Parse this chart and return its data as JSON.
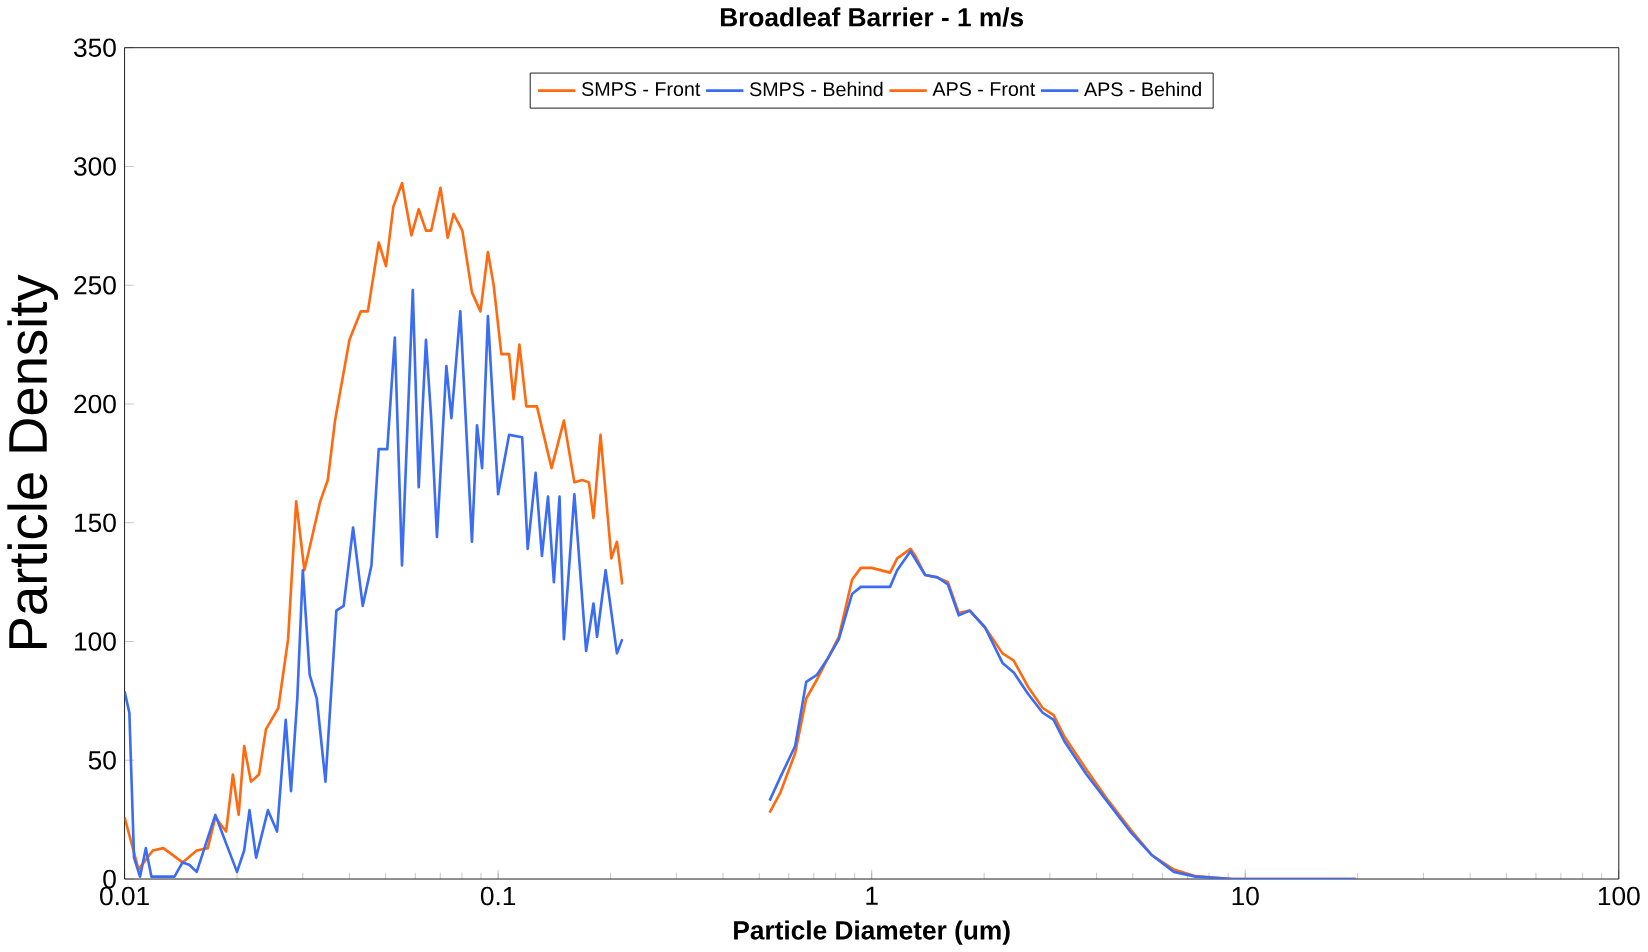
{
  "chart_data": {
    "type": "line",
    "title": "Broadleaf Barrier - 1 m/s",
    "xlabel": "Particle Diameter (um)",
    "ylabel": "Particle Density",
    "log": "x",
    "xlim": [
      0.01,
      100
    ],
    "xticks": [
      0.01,
      0.1,
      1,
      10,
      100
    ],
    "ylim": [
      0,
      350
    ],
    "yticks": [
      0,
      50,
      100,
      150,
      200,
      250,
      300,
      350
    ],
    "legend": "top",
    "marker": "none",
    "line_style": "solid",
    "series": [
      {
        "name": "SMPS - Front",
        "color": "#ff6a10",
        "x": [
          0.01,
          0.0109,
          0.0119,
          0.0127,
          0.0143,
          0.0156,
          0.0167,
          0.0175,
          0.0187,
          0.0195,
          0.0202,
          0.0209,
          0.0218,
          0.0229,
          0.0239,
          0.0258,
          0.0274,
          0.0288,
          0.0303,
          0.0334,
          0.035,
          0.0366,
          0.04,
          0.0429,
          0.0448,
          0.0479,
          0.0501,
          0.0524,
          0.0553,
          0.0586,
          0.0613,
          0.0641,
          0.0662,
          0.0701,
          0.0733,
          0.076,
          0.0802,
          0.0851,
          0.0897,
          0.0939,
          0.0973,
          0.102,
          0.107,
          0.11,
          0.114,
          0.119,
          0.127,
          0.139,
          0.15,
          0.16,
          0.168,
          0.175,
          0.18,
          0.188,
          0.201,
          0.208,
          0.215
        ],
        "values": [
          26,
          4,
          12,
          13,
          7,
          12,
          13,
          26,
          20,
          44,
          27,
          56,
          41,
          44,
          63,
          72,
          101,
          159,
          130,
          159,
          168,
          193,
          227,
          239,
          239,
          268,
          258,
          283,
          293,
          271,
          282,
          273,
          273,
          291,
          270,
          280,
          273,
          247,
          239,
          264,
          250,
          221,
          221,
          202,
          225,
          199,
          199,
          173,
          193,
          167,
          168,
          167,
          152,
          187,
          135,
          142,
          124
        ]
      },
      {
        "name": "SMPS - Behind",
        "color": "#3a6cf4",
        "x": [
          0.01,
          0.0103,
          0.0106,
          0.011,
          0.0114,
          0.0118,
          0.0136,
          0.0143,
          0.0149,
          0.0156,
          0.0175,
          0.0187,
          0.02,
          0.0209,
          0.0216,
          0.0225,
          0.0242,
          0.0256,
          0.027,
          0.0279,
          0.029,
          0.03,
          0.0313,
          0.0327,
          0.0345,
          0.0369,
          0.0386,
          0.0409,
          0.0434,
          0.0458,
          0.0479,
          0.0505,
          0.0529,
          0.0553,
          0.0591,
          0.0613,
          0.0641,
          0.0662,
          0.0686,
          0.0727,
          0.075,
          0.0792,
          0.0851,
          0.0878,
          0.0906,
          0.0939,
          0.1,
          0.107,
          0.116,
          0.12,
          0.126,
          0.131,
          0.136,
          0.141,
          0.146,
          0.15,
          0.16,
          0.172,
          0.18,
          0.184,
          0.194,
          0.208,
          0.215
        ],
        "values": [
          79,
          70,
          9,
          1,
          13,
          1,
          1,
          7,
          6,
          3,
          27,
          15,
          3,
          12,
          29,
          9,
          29,
          20,
          67,
          37,
          76,
          130,
          86,
          76,
          41,
          113,
          115,
          148,
          115,
          132,
          181,
          181,
          228,
          132,
          248,
          165,
          227,
          194,
          144,
          216,
          194,
          239,
          142,
          191,
          173,
          237,
          162,
          187,
          186,
          139,
          171,
          136,
          161,
          125,
          161,
          101,
          162,
          96,
          116,
          102,
          130,
          95,
          101
        ]
      },
      {
        "name": "APS - Front",
        "color": "#ff6a10",
        "x": [
          0.533,
          0.57,
          0.624,
          0.668,
          0.714,
          0.764,
          0.817,
          0.886,
          0.935,
          1,
          1.12,
          1.17,
          1.27,
          1.31,
          1.39,
          1.5,
          1.6,
          1.71,
          1.83,
          2.01,
          2.24,
          2.4,
          2.62,
          2.87,
          3.07,
          3.28,
          3.76,
          4.3,
          4.92,
          5.63,
          6.44,
          7.37,
          9.23,
          19.8
        ],
        "values": [
          28,
          36.5,
          53,
          76,
          84,
          93,
          102,
          126,
          131,
          131,
          129,
          135,
          139,
          136,
          128,
          127,
          125,
          112,
          113,
          106,
          95,
          92,
          81,
          72,
          69,
          60,
          46,
          33,
          21,
          10,
          4,
          1.2,
          0,
          0
        ]
      },
      {
        "name": "APS - Behind",
        "color": "#3a6cf4",
        "x": [
          0.533,
          0.57,
          0.624,
          0.668,
          0.714,
          0.764,
          0.817,
          0.886,
          0.935,
          1,
          1.12,
          1.17,
          1.27,
          1.39,
          1.5,
          1.6,
          1.71,
          1.83,
          2.01,
          2.24,
          2.4,
          2.62,
          2.87,
          3.07,
          3.28,
          3.76,
          4.3,
          4.92,
          5.63,
          6.44,
          7.37,
          9.23,
          19.8
        ],
        "values": [
          33,
          43,
          56,
          83,
          86,
          93,
          101,
          120,
          123,
          123,
          123,
          130,
          138,
          128,
          127,
          124,
          111,
          113,
          106,
          91,
          87,
          78,
          70,
          67,
          58,
          44,
          32,
          20,
          10,
          3,
          1,
          0,
          0
        ]
      }
    ]
  }
}
